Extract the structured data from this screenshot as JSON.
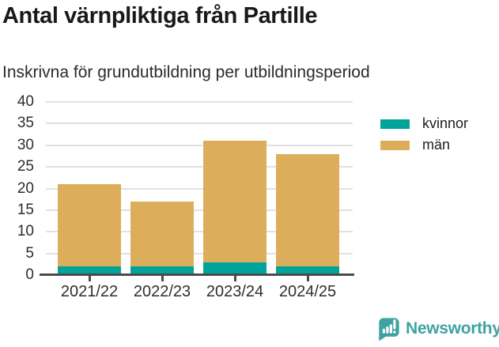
{
  "chart_data": {
    "type": "bar",
    "stacked": true,
    "title": "Antal värnpliktiga från Partille",
    "subtitle": "Inskrivna för grundutbildning per utbildningsperiod",
    "categories": [
      "2021/22",
      "2022/23",
      "2023/24",
      "2024/25"
    ],
    "series": [
      {
        "name": "kvinnor",
        "color": "#00a49a",
        "values": [
          2,
          2,
          3,
          2
        ]
      },
      {
        "name": "män",
        "color": "#dcae5b",
        "values": [
          19,
          15,
          28,
          26
        ]
      }
    ],
    "xlabel": "",
    "ylabel": "",
    "ylim": [
      0,
      40
    ],
    "ytick_step": 5,
    "grid": true,
    "legend_position": "right"
  },
  "footer": {
    "brand": "Newsworthy"
  },
  "colors": {
    "axis": "#4a4a4a",
    "grid": "#e1e1e1",
    "tick_text": "#2e2e2e",
    "title_text": "#191919",
    "brand_teal": "#3ea3a0"
  }
}
